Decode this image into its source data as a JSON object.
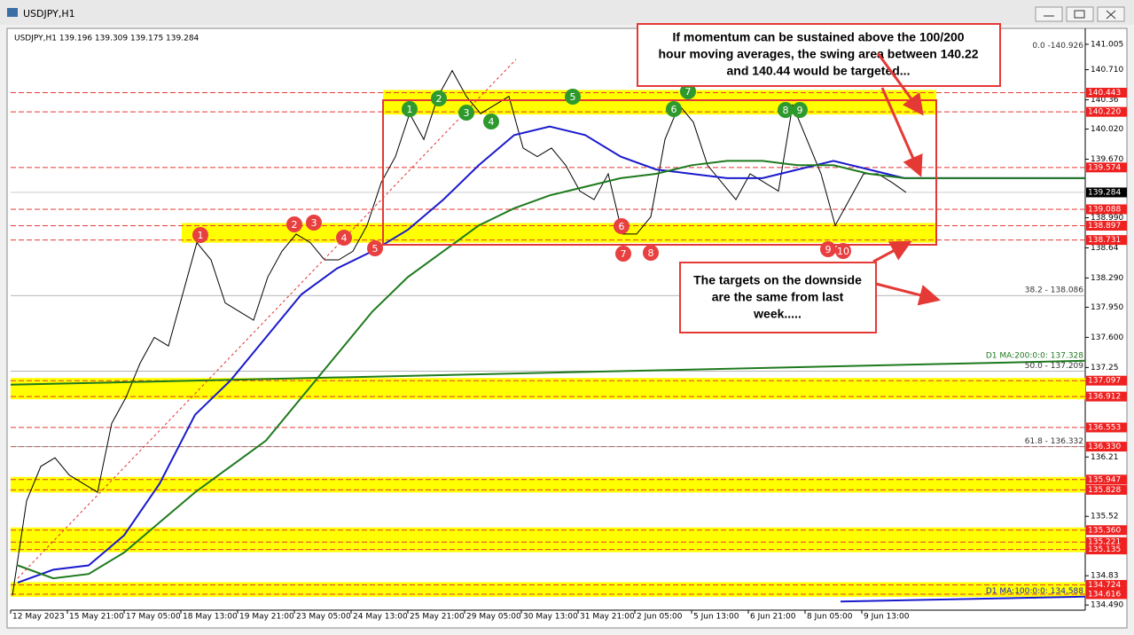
{
  "window_title": "USDJPY,H1",
  "chart_data": {
    "type": "line",
    "header": "USDJPY,H1 139.196 139.309 139.175 139.284",
    "ylim": [
      134.43,
      141.19
    ],
    "yticks": [
      141.005,
      {
        "value": 140.71,
        "label": "140.710"
      },
      140.36,
      {
        "value": 140.02,
        "label": "140.020"
      },
      {
        "value": 139.67,
        "label": "139.670"
      },
      {
        "value": 138.99,
        "label": "138.990"
      },
      138.64,
      {
        "value": 138.29,
        "label": "138.290"
      },
      {
        "value": 137.95,
        "label": "137.950"
      },
      {
        "value": 137.6,
        "label": "137.600"
      },
      137.25,
      136.21,
      135.52,
      134.83,
      {
        "value": 134.49,
        "label": "134.490"
      }
    ],
    "x_labels": [
      "12 May 2023",
      "15 May 21:00",
      "17 May 05:00",
      "18 May 13:00",
      "19 May 21:00",
      "23 May 05:00",
      "24 May 13:00",
      "25 May 21:00",
      "29 May 05:00",
      "30 May 13:00",
      "31 May 21:00",
      "2 Jun 05:00",
      "5 Jun 13:00",
      "6 Jun 21:00",
      "8 Jun 05:00",
      "9 Jun 13:00"
    ],
    "series": [
      {
        "color": "#000000",
        "values": [
          134.6,
          135.7,
          136.1,
          136.2,
          136.0,
          135.9,
          135.8,
          136.6,
          136.9,
          137.3,
          137.6,
          137.5,
          138.1,
          138.7,
          138.5,
          138.0,
          137.9,
          137.8,
          138.3,
          138.6,
          138.8,
          138.7,
          138.5,
          138.5,
          138.6,
          138.9,
          139.4,
          139.7,
          140.2,
          139.9,
          140.4,
          140.7,
          140.4,
          140.2,
          140.3,
          140.4,
          139.8,
          139.7,
          139.8,
          139.6,
          139.3,
          139.2,
          139.5,
          138.8,
          138.8,
          139.0,
          139.9,
          140.3,
          140.1,
          139.6,
          139.4,
          139.2,
          139.5,
          139.4,
          139.3,
          140.3,
          139.9,
          139.5,
          138.9,
          139.2,
          139.5,
          139.5,
          139.4,
          139.284
        ]
      },
      {
        "color": "#1a1acc",
        "values": [
          134.75,
          134.9,
          134.95,
          135.3,
          135.9,
          136.7,
          137.1,
          137.6,
          138.1,
          138.4,
          138.6,
          138.85,
          139.2,
          139.6,
          139.95,
          140.05,
          139.95,
          139.7,
          139.55,
          139.5,
          139.45,
          139.45,
          139.55,
          139.65,
          139.55,
          139.45
        ]
      },
      {
        "color": "#1e7a1e",
        "values": [
          134.95,
          134.8,
          134.85,
          135.1,
          135.45,
          135.8,
          136.1,
          136.4,
          136.9,
          137.4,
          137.9,
          138.3,
          138.6,
          138.9,
          139.1,
          139.25,
          139.35,
          139.45,
          139.5,
          139.6,
          139.65,
          139.65,
          139.6,
          139.6,
          139.5,
          139.45
        ]
      },
      {
        "name": "D1 MA:200:0:0: 137.328",
        "color": "#1e7a1e",
        "values": [
          137.05,
          137.328
        ]
      },
      {
        "name": "D1 MA:100:0:0: 134.588",
        "color": "#1a1acc",
        "values": [
          134.53,
          134.588
        ]
      }
    ],
    "levels": [
      140.443,
      {
        "value": 140.22,
        "label": "140.220"
      },
      139.574,
      139.088,
      138.897,
      138.731,
      137.097,
      136.912,
      136.553,
      {
        "value": 136.33,
        "label": "136.330"
      },
      135.947,
      135.828,
      {
        "value": 135.36,
        "label": "135.360"
      },
      135.221,
      135.135,
      134.724,
      134.616
    ],
    "current_price": 139.284,
    "fib_levels": [
      {
        "value": 140.926,
        "label": "0.0 -140.926"
      },
      {
        "value": 138.086,
        "label": "38.2 - 138.086"
      },
      {
        "value": 137.209,
        "label": "50.0 - 137.209"
      },
      {
        "value": 136.332,
        "label": "61.8 - 136.332"
      }
    ],
    "swing_markers": [
      {
        "label": "1",
        "color": "#2e9a2e"
      },
      {
        "label": "2",
        "color": "#2e9a2e"
      },
      {
        "label": "3",
        "color": "#2e9a2e"
      },
      {
        "label": "4",
        "color": "#2e9a2e"
      },
      {
        "label": "5",
        "color": "#2e9a2e"
      },
      {
        "label": "6",
        "color": "#2e9a2e"
      },
      {
        "label": "7",
        "color": "#2e9a2e"
      },
      {
        "label": "8",
        "color": "#2e9a2e"
      },
      {
        "label": "9",
        "color": "#2e9a2e"
      },
      {
        "label": "1",
        "color": "#e84040"
      },
      {
        "label": "2",
        "color": "#e84040"
      },
      {
        "label": "3",
        "color": "#e84040"
      },
      {
        "label": "4",
        "color": "#e84040"
      },
      {
        "label": "5",
        "color": "#e84040"
      },
      {
        "label": "6",
        "color": "#e84040"
      },
      {
        "label": "7",
        "color": "#e84040"
      },
      {
        "label": "8",
        "color": "#e84040"
      },
      {
        "label": "9",
        "color": "#e84040"
      },
      {
        "label": "10",
        "color": "#e84040"
      }
    ],
    "annotations": [
      [
        "If momentum can be sustained above the 100/200",
        "hour moving averages, the swing area between 140.22",
        "and 140.44 would be targeted..."
      ],
      [
        "The targets on the downside",
        "are the same from last",
        "week....."
      ]
    ]
  }
}
